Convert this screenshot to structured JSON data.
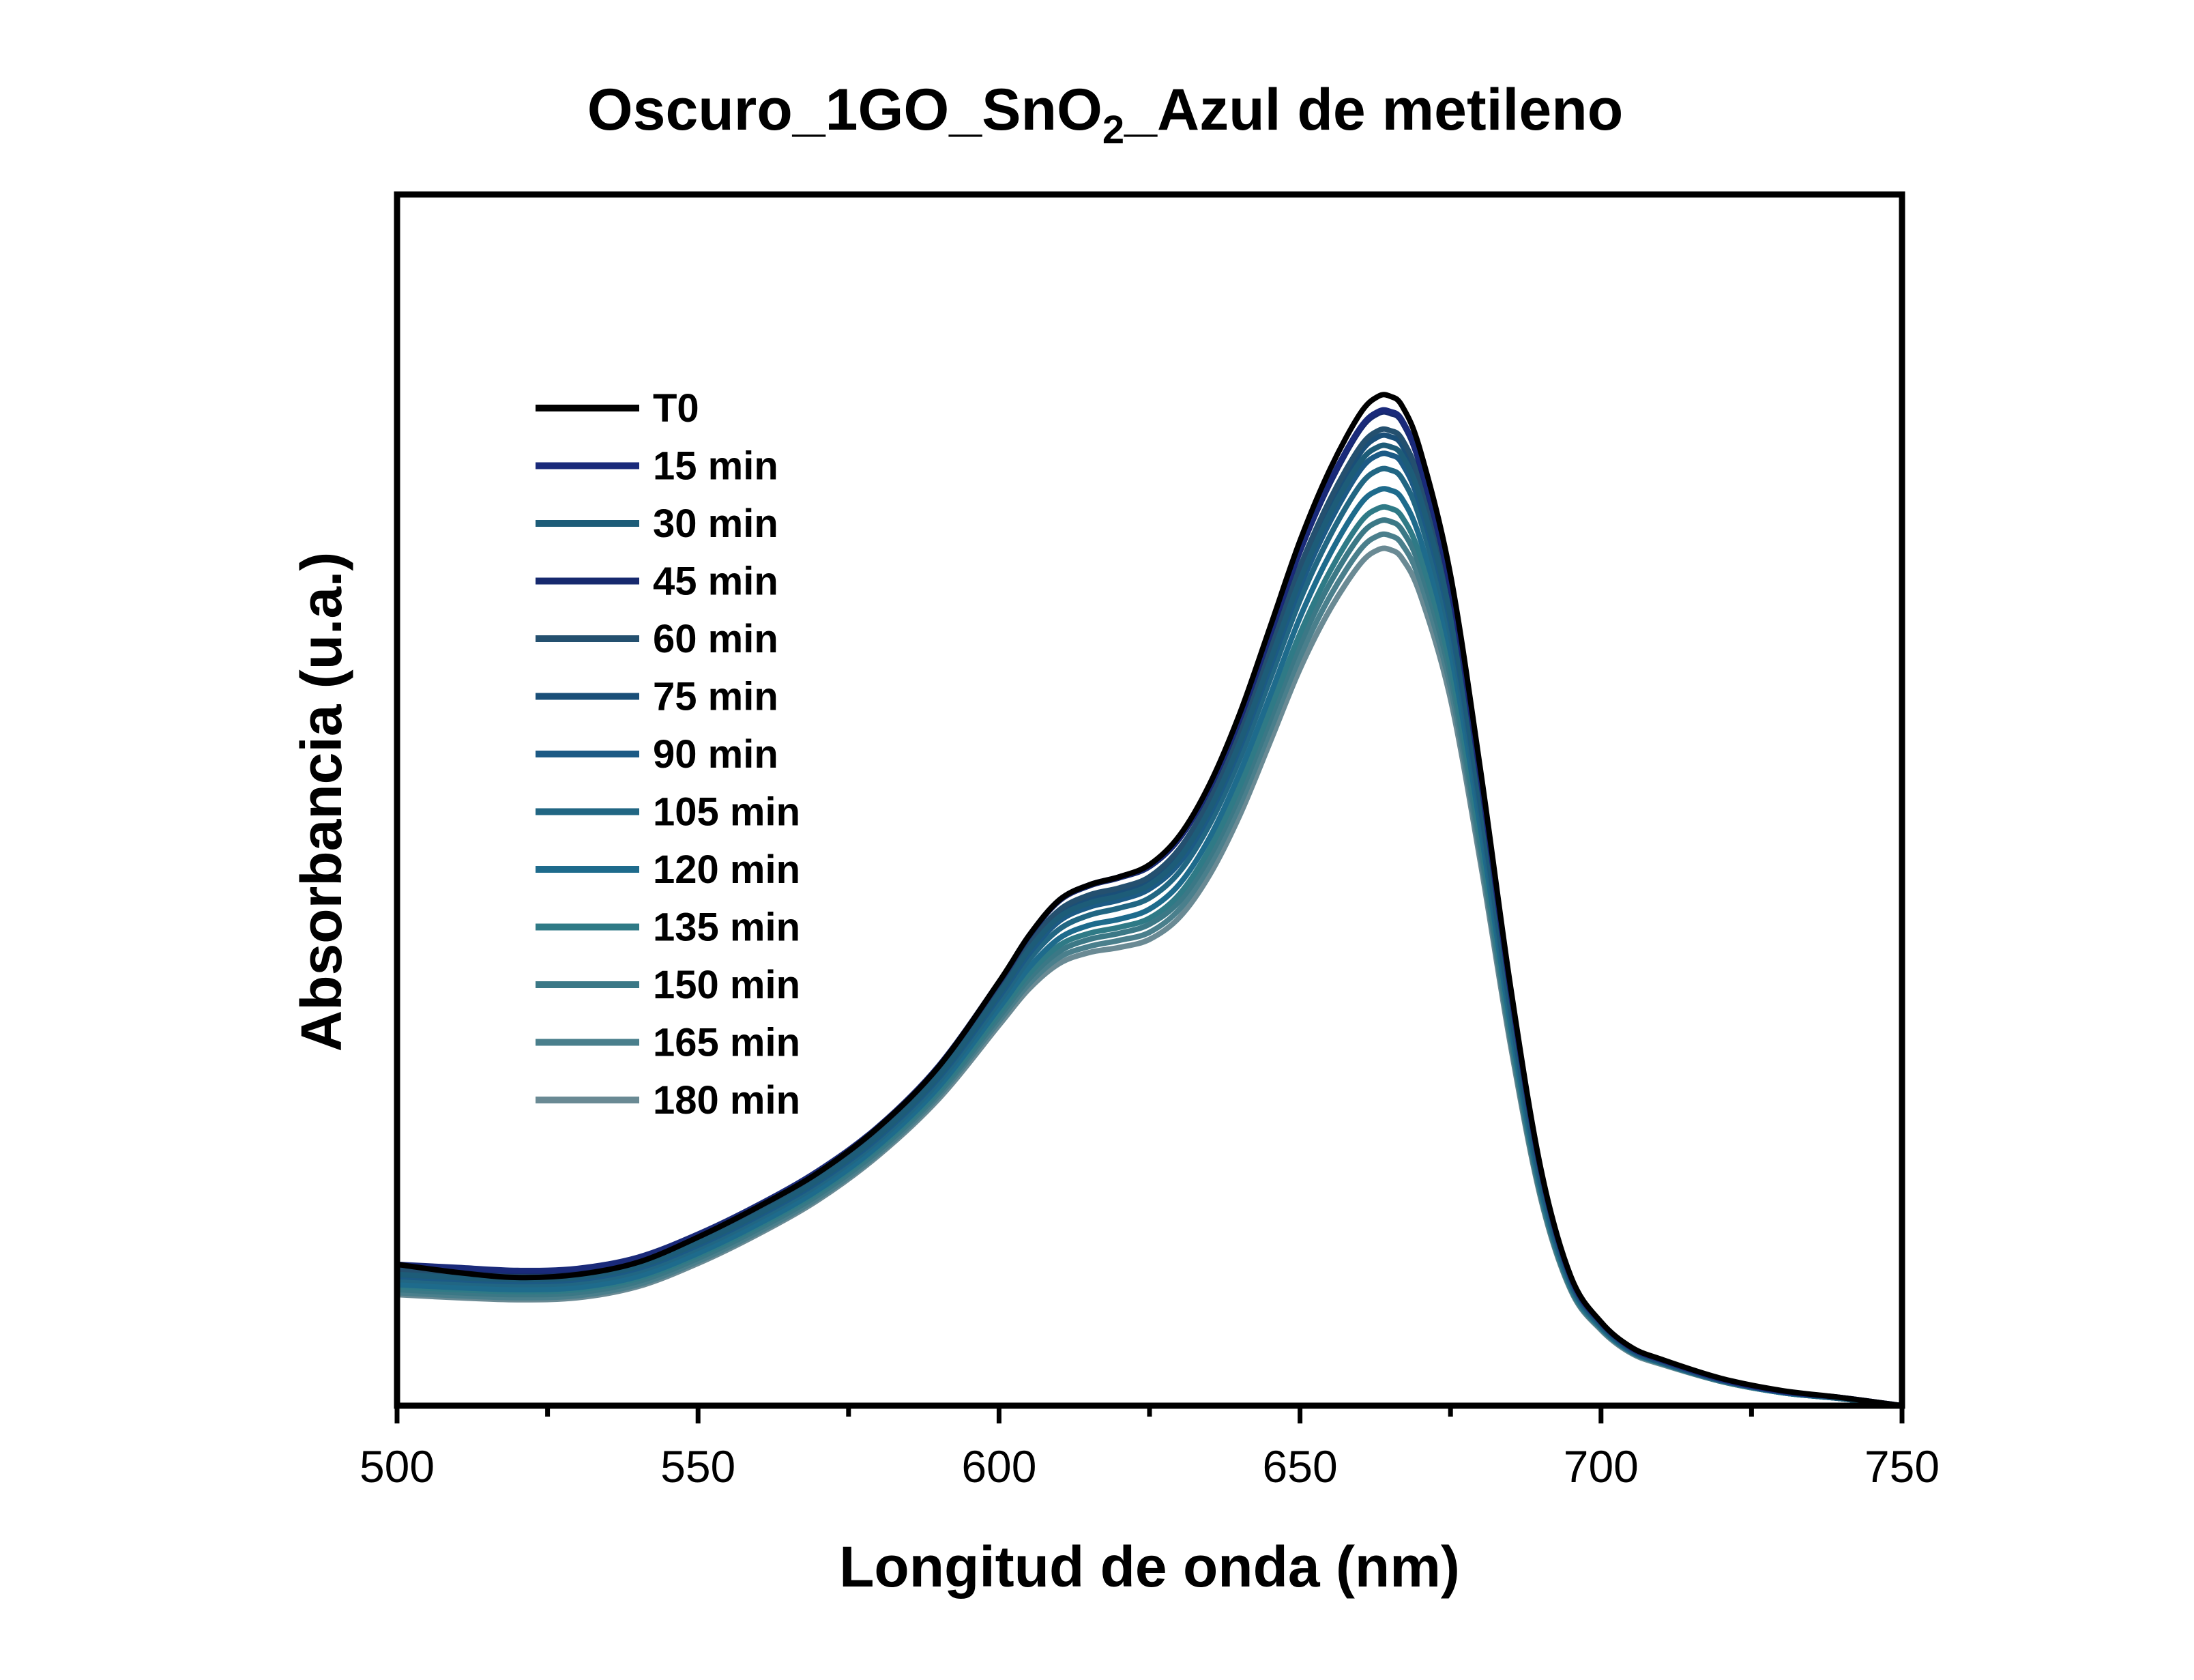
{
  "chart_data": {
    "type": "line",
    "title": {
      "main": "Oscuro_1GO_SnO",
      "sub": "2",
      "rest": "_Azul de metileno"
    },
    "xlabel": "Longitud de onda (nm)",
    "ylabel": "Absorbancia (u.a.)",
    "xlim": [
      500,
      750
    ],
    "ylim": [
      0,
      1.2
    ],
    "x_ticks": [
      "500",
      "550",
      "600",
      "650",
      "700",
      "750"
    ],
    "y_ticks_shown": false,
    "legend_position": "top-left",
    "x": [
      500,
      510,
      520,
      530,
      540,
      550,
      560,
      570,
      580,
      590,
      600,
      605,
      610,
      615,
      620,
      625,
      630,
      635,
      640,
      645,
      650,
      655,
      660,
      663,
      665,
      667,
      670,
      675,
      680,
      685,
      690,
      695,
      700,
      705,
      710,
      720,
      730,
      740,
      750
    ],
    "series": [
      {
        "name": "T0",
        "color": "#000000",
        "values": [
          0.14,
          0.132,
          0.127,
          0.13,
          0.142,
          0.167,
          0.197,
          0.231,
          0.276,
          0.336,
          0.42,
          0.466,
          0.501,
          0.516,
          0.524,
          0.536,
          0.565,
          0.616,
          0.686,
          0.771,
          0.857,
          0.928,
          0.983,
          1.0,
          1.0,
          0.99,
          0.946,
          0.823,
          0.629,
          0.414,
          0.235,
          0.128,
          0.083,
          0.058,
          0.046,
          0.027,
          0.015,
          0.008,
          0.0
        ]
      },
      {
        "name": "15 min",
        "color": "#1a2a7a",
        "values": [
          0.14,
          0.137,
          0.134,
          0.136,
          0.147,
          0.17,
          0.199,
          0.233,
          0.277,
          0.337,
          0.42,
          0.466,
          0.501,
          0.516,
          0.524,
          0.535,
          0.563,
          0.613,
          0.681,
          0.764,
          0.847,
          0.916,
          0.969,
          0.985,
          0.985,
          0.976,
          0.932,
          0.811,
          0.62,
          0.408,
          0.232,
          0.126,
          0.082,
          0.057,
          0.045,
          0.026,
          0.014,
          0.008,
          0.0
        ]
      },
      {
        "name": "30 min",
        "color": "#1d5c78",
        "values": [
          0.13,
          0.127,
          0.125,
          0.127,
          0.138,
          0.161,
          0.19,
          0.224,
          0.268,
          0.327,
          0.408,
          0.452,
          0.484,
          0.498,
          0.505,
          0.516,
          0.543,
          0.591,
          0.657,
          0.737,
          0.818,
          0.884,
          0.935,
          0.95,
          0.95,
          0.941,
          0.899,
          0.782,
          0.598,
          0.394,
          0.224,
          0.123,
          0.08,
          0.056,
          0.044,
          0.026,
          0.014,
          0.007,
          0.0
        ]
      },
      {
        "name": "45 min",
        "color": "#16296e",
        "values": [
          0.14,
          0.136,
          0.133,
          0.135,
          0.146,
          0.169,
          0.198,
          0.232,
          0.276,
          0.336,
          0.419,
          0.465,
          0.5,
          0.515,
          0.523,
          0.534,
          0.562,
          0.612,
          0.68,
          0.763,
          0.846,
          0.914,
          0.967,
          0.983,
          0.983,
          0.974,
          0.93,
          0.809,
          0.618,
          0.407,
          0.231,
          0.126,
          0.082,
          0.057,
          0.045,
          0.026,
          0.014,
          0.008,
          0.0
        ]
      },
      {
        "name": "60 min",
        "color": "#24506f",
        "values": [
          0.135,
          0.132,
          0.129,
          0.131,
          0.142,
          0.165,
          0.194,
          0.228,
          0.272,
          0.331,
          0.413,
          0.458,
          0.491,
          0.506,
          0.513,
          0.524,
          0.552,
          0.601,
          0.668,
          0.749,
          0.831,
          0.898,
          0.95,
          0.966,
          0.966,
          0.957,
          0.914,
          0.795,
          0.607,
          0.4,
          0.228,
          0.124,
          0.081,
          0.056,
          0.044,
          0.026,
          0.014,
          0.007,
          0.0
        ]
      },
      {
        "name": "75 min",
        "color": "#1a4f78",
        "values": [
          0.132,
          0.129,
          0.127,
          0.129,
          0.14,
          0.163,
          0.192,
          0.226,
          0.27,
          0.329,
          0.411,
          0.455,
          0.488,
          0.502,
          0.51,
          0.521,
          0.548,
          0.597,
          0.664,
          0.744,
          0.826,
          0.892,
          0.944,
          0.96,
          0.96,
          0.951,
          0.908,
          0.79,
          0.604,
          0.398,
          0.226,
          0.124,
          0.081,
          0.056,
          0.044,
          0.026,
          0.014,
          0.007,
          0.0
        ]
      },
      {
        "name": "90 min",
        "color": "#1c5a85",
        "values": [
          0.128,
          0.125,
          0.123,
          0.125,
          0.136,
          0.159,
          0.188,
          0.222,
          0.266,
          0.325,
          0.405,
          0.448,
          0.48,
          0.494,
          0.501,
          0.512,
          0.538,
          0.586,
          0.652,
          0.731,
          0.811,
          0.876,
          0.927,
          0.942,
          0.942,
          0.933,
          0.891,
          0.775,
          0.593,
          0.391,
          0.222,
          0.122,
          0.08,
          0.055,
          0.043,
          0.025,
          0.014,
          0.007,
          0.0
        ]
      },
      {
        "name": "105 min",
        "color": "#216683",
        "values": [
          0.125,
          0.122,
          0.12,
          0.122,
          0.133,
          0.156,
          0.185,
          0.219,
          0.263,
          0.321,
          0.4,
          0.442,
          0.472,
          0.486,
          0.493,
          0.503,
          0.529,
          0.576,
          0.641,
          0.719,
          0.798,
          0.862,
          0.912,
          0.927,
          0.927,
          0.918,
          0.877,
          0.763,
          0.583,
          0.385,
          0.219,
          0.121,
          0.079,
          0.055,
          0.043,
          0.025,
          0.014,
          0.007,
          0.0
        ]
      },
      {
        "name": "120 min",
        "color": "#1e6b8c",
        "values": [
          0.12,
          0.117,
          0.115,
          0.117,
          0.128,
          0.151,
          0.18,
          0.214,
          0.258,
          0.316,
          0.394,
          0.434,
          0.463,
          0.476,
          0.482,
          0.492,
          0.517,
          0.563,
          0.627,
          0.703,
          0.781,
          0.844,
          0.893,
          0.907,
          0.907,
          0.898,
          0.858,
          0.747,
          0.571,
          0.377,
          0.215,
          0.119,
          0.078,
          0.054,
          0.043,
          0.025,
          0.013,
          0.007,
          0.0
        ]
      },
      {
        "name": "135 min",
        "color": "#2f7a86",
        "values": [
          0.118,
          0.115,
          0.113,
          0.115,
          0.126,
          0.149,
          0.178,
          0.212,
          0.256,
          0.313,
          0.389,
          0.428,
          0.456,
          0.468,
          0.474,
          0.483,
          0.507,
          0.552,
          0.614,
          0.689,
          0.765,
          0.827,
          0.875,
          0.889,
          0.889,
          0.88,
          0.841,
          0.732,
          0.56,
          0.37,
          0.212,
          0.117,
          0.077,
          0.054,
          0.042,
          0.025,
          0.013,
          0.007,
          0.0
        ]
      },
      {
        "name": "150 min",
        "color": "#3b7886",
        "values": [
          0.115,
          0.112,
          0.11,
          0.112,
          0.123,
          0.146,
          0.175,
          0.209,
          0.253,
          0.31,
          0.385,
          0.423,
          0.45,
          0.462,
          0.468,
          0.477,
          0.5,
          0.544,
          0.605,
          0.679,
          0.754,
          0.815,
          0.862,
          0.876,
          0.876,
          0.867,
          0.829,
          0.722,
          0.553,
          0.366,
          0.21,
          0.116,
          0.077,
          0.053,
          0.042,
          0.024,
          0.013,
          0.007,
          0.0
        ]
      },
      {
        "name": "165 min",
        "color": "#4a7f8c",
        "values": [
          0.112,
          0.109,
          0.107,
          0.109,
          0.12,
          0.143,
          0.172,
          0.206,
          0.25,
          0.307,
          0.381,
          0.418,
          0.444,
          0.455,
          0.461,
          0.469,
          0.492,
          0.535,
          0.595,
          0.668,
          0.742,
          0.802,
          0.848,
          0.862,
          0.862,
          0.853,
          0.816,
          0.711,
          0.545,
          0.361,
          0.207,
          0.115,
          0.076,
          0.053,
          0.042,
          0.024,
          0.013,
          0.007,
          0.0
        ]
      },
      {
        "name": "180 min",
        "color": "#6a8a94",
        "values": [
          0.11,
          0.107,
          0.105,
          0.107,
          0.118,
          0.141,
          0.17,
          0.204,
          0.248,
          0.304,
          0.377,
          0.413,
          0.438,
          0.449,
          0.454,
          0.462,
          0.484,
          0.526,
          0.585,
          0.657,
          0.73,
          0.789,
          0.834,
          0.848,
          0.848,
          0.839,
          0.803,
          0.7,
          0.537,
          0.356,
          0.205,
          0.114,
          0.075,
          0.052,
          0.041,
          0.024,
          0.013,
          0.007,
          0.0
        ]
      }
    ]
  }
}
